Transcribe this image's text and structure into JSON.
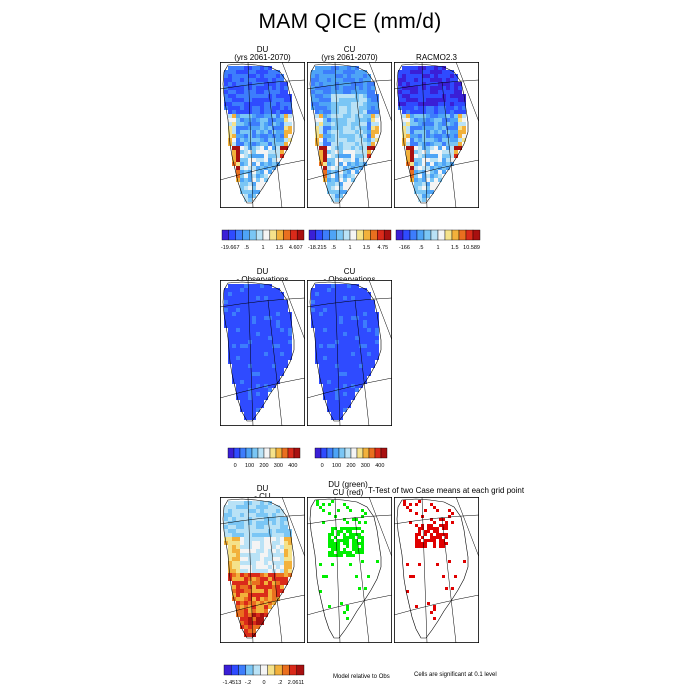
{
  "title": "MAM QICE (mm/d)",
  "colors": {
    "abs_scale": [
      "#3a1fd6",
      "#2f4bff",
      "#3d7dfc",
      "#4ea4f6",
      "#7ac6f5",
      "#b9e2f6",
      "#f4f4f4",
      "#f5e28a",
      "#f2b13b",
      "#ea6f1f",
      "#da2a1a",
      "#a81010"
    ],
    "diff_scale": [
      "#3a1fd6",
      "#2f4bff",
      "#3d7dfc",
      "#7ac6f5",
      "#b9e2f6",
      "#f4f4f4",
      "#f5e28a",
      "#f2b13b",
      "#ea6f1f",
      "#da2a1a",
      "#a81010"
    ],
    "sig_green": "#00ee00",
    "sig_red": "#e00000"
  },
  "row1": {
    "panels": [
      {
        "line1": "DU",
        "line2": "(yrs 2061-2070)",
        "variant": "du"
      },
      {
        "line1": "CU",
        "line2": "(yrs 2061-2070)",
        "variant": "cu"
      },
      {
        "line1": "RACMO2.3",
        "line2": "",
        "variant": "racmo"
      }
    ],
    "colorbars": [
      {
        "labels": [
          "-19.667",
          ".5",
          "1",
          "1.5",
          "4.607"
        ]
      },
      {
        "labels": [
          "-18.215",
          ".5",
          "1",
          "1.5",
          "4.75"
        ]
      },
      {
        "labels": [
          "-166",
          ".5",
          "1",
          "1.5",
          "10.589"
        ]
      }
    ]
  },
  "row2": {
    "panels": [
      {
        "line1": "DU",
        "line2": "- Observations",
        "variant": "obs"
      },
      {
        "line1": "CU",
        "line2": "- Observations",
        "variant": "obs"
      }
    ],
    "colorbars": [
      {
        "labels": [
          "0",
          "100",
          "200",
          "300",
          "400"
        ]
      },
      {
        "labels": [
          "0",
          "100",
          "200",
          "300",
          "400"
        ]
      }
    ]
  },
  "row3": {
    "diff_panel": {
      "line1": "DU",
      "line2": "- CU"
    },
    "test_title_a": "DU (green)",
    "test_title_b": "CU (red)",
    "test_title_c": "T-Test of two Case means at each grid point",
    "colorbar": {
      "labels": [
        "-1.4513",
        "-.2",
        "0",
        ".2",
        "2.0611"
      ]
    },
    "note_left": "Model relative to Obs",
    "note_right": "Cells are significant at 0.1 level"
  }
}
